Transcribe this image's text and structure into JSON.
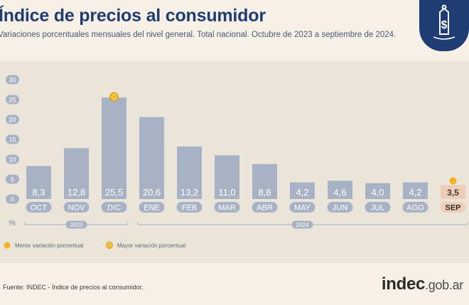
{
  "header": {
    "title": "Índice de precios al consumidor",
    "subtitle": "Variaciones porcentuales mensuales del nivel general. Total nacional. Octubre de 2023 a septiembre de 2024."
  },
  "colors": {
    "bar": "#a7b3c4",
    "bar_highlight": "#f0cdb6",
    "marker": "#f0b323",
    "title": "#1f3d73",
    "axis_pill": "#a7b3c4"
  },
  "legend": {
    "min_label": "Menor variación porcentual",
    "max_label": "Mayor variación porcentual"
  },
  "footer": {
    "source": "Fuente: INDEC - Índice de precios al consumidor.",
    "brand_main": "indec",
    "brand_suffix": ".gob.ar"
  },
  "chart_data": {
    "type": "bar",
    "categories": [
      "OCT",
      "NOV",
      "DIC",
      "ENE",
      "FEB",
      "MAR",
      "ABR",
      "MAY",
      "JUN",
      "JUL",
      "AGO",
      "SEP"
    ],
    "values": [
      8.3,
      12.8,
      25.5,
      20.6,
      13.2,
      11.0,
      8.8,
      4.2,
      4.6,
      4.0,
      4.2,
      3.5
    ],
    "labels": [
      "8,3",
      "12,8",
      "25,5",
      "20,6",
      "13,2",
      "11,0",
      "8,8",
      "4,2",
      "4,6",
      "4,0",
      "4,2",
      "3,5"
    ],
    "ylim": [
      0,
      30
    ],
    "yticks": [
      0,
      5,
      10,
      15,
      20,
      25,
      30
    ],
    "yunit": "%",
    "years": [
      {
        "label": "2023",
        "from": 0,
        "to": 2
      },
      {
        "label": "2024",
        "from": 3,
        "to": 11
      }
    ],
    "max_index": 2,
    "min_index": 11,
    "grid": false
  }
}
